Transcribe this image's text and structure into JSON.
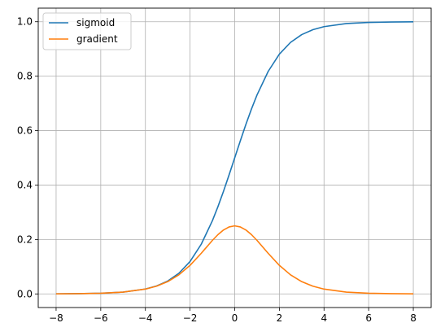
{
  "chart_data": {
    "type": "line",
    "title": "",
    "xlabel": "",
    "ylabel": "",
    "xlim": [
      -8.8,
      8.8
    ],
    "ylim": [
      -0.05,
      1.05
    ],
    "x_ticks": [
      -8,
      -6,
      -4,
      -2,
      0,
      2,
      4,
      6,
      8
    ],
    "x_tick_labels": [
      "−8",
      "−6",
      "−4",
      "−2",
      "0",
      "2",
      "4",
      "6",
      "8"
    ],
    "y_ticks": [
      0.0,
      0.2,
      0.4,
      0.6,
      0.8,
      1.0
    ],
    "y_tick_labels": [
      "0.0",
      "0.2",
      "0.4",
      "0.6",
      "0.8",
      "1.0"
    ],
    "grid": true,
    "legend_position": "top-left",
    "x": [
      -8,
      -7,
      -6,
      -5,
      -4,
      -3.5,
      -3,
      -2.5,
      -2,
      -1.5,
      -1,
      -0.75,
      -0.5,
      -0.25,
      0,
      0.25,
      0.5,
      0.75,
      1,
      1.5,
      2,
      2.5,
      3,
      3.5,
      4,
      5,
      6,
      7,
      8
    ],
    "series": [
      {
        "name": "sigmoid",
        "color": "#1f77b4",
        "values": [
          0.0003,
          0.0009,
          0.0025,
          0.0067,
          0.018,
          0.0293,
          0.0474,
          0.0759,
          0.1192,
          0.1824,
          0.2689,
          0.3208,
          0.3775,
          0.4378,
          0.5,
          0.5622,
          0.6225,
          0.6792,
          0.7311,
          0.8176,
          0.8808,
          0.9241,
          0.9526,
          0.9707,
          0.982,
          0.9933,
          0.9975,
          0.9991,
          0.9997
        ]
      },
      {
        "name": "gradient",
        "color": "#ff7f0e",
        "values": [
          0.0003,
          0.0009,
          0.0025,
          0.0066,
          0.0177,
          0.0285,
          0.0452,
          0.0701,
          0.105,
          0.1491,
          0.1966,
          0.2179,
          0.235,
          0.2461,
          0.25,
          0.2461,
          0.235,
          0.2179,
          0.1966,
          0.1491,
          0.105,
          0.0701,
          0.0452,
          0.0285,
          0.0177,
          0.0066,
          0.0025,
          0.0009,
          0.0003
        ]
      }
    ]
  }
}
